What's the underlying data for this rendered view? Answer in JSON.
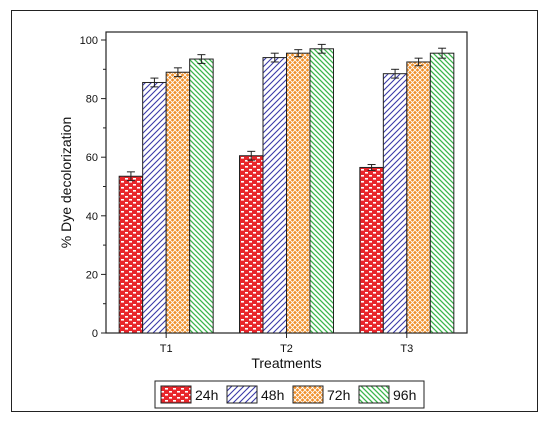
{
  "chart_data": {
    "type": "bar",
    "categories": [
      "T1",
      "T2",
      "T3"
    ],
    "xlabel": "Treatments",
    "ylabel": "% Dye decolorization",
    "ylim": [
      0,
      100
    ],
    "yticks": [
      0,
      20,
      40,
      60,
      80,
      100
    ],
    "legend_position": "bottom",
    "series": [
      {
        "name": "24h",
        "values": [
          53.5,
          60.5,
          56.5
        ],
        "errors": [
          1.5,
          1.5,
          1.0
        ],
        "color": "#e8262b",
        "pattern": "bricks"
      },
      {
        "name": "48h",
        "values": [
          85.5,
          94.0,
          88.5
        ],
        "errors": [
          1.5,
          1.5,
          1.5
        ],
        "color": "#3a3aa8",
        "pattern": "diag-left"
      },
      {
        "name": "72h",
        "values": [
          89.0,
          95.5,
          92.5
        ],
        "errors": [
          1.5,
          1.2,
          1.3
        ],
        "color": "#f0902a",
        "pattern": "crosshatch"
      },
      {
        "name": "96h",
        "values": [
          93.5,
          97.0,
          95.5
        ],
        "errors": [
          1.5,
          1.5,
          1.7
        ],
        "color": "#39b54a",
        "pattern": "diag-right"
      }
    ]
  }
}
